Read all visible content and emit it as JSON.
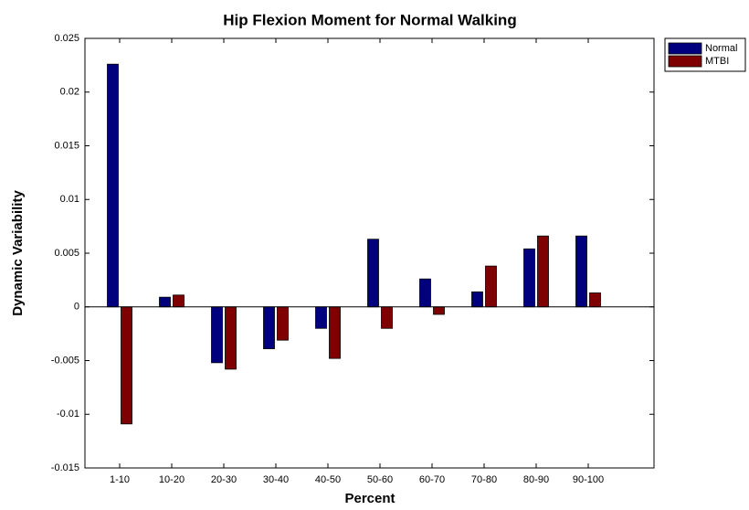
{
  "chart_data": {
    "type": "bar",
    "title": "Hip Flexion Moment for Normal Walking",
    "xlabel": "Percent",
    "ylabel": "Dynamic Variability",
    "categories": [
      "1-10",
      "10-20",
      "20-30",
      "30-40",
      "40-50",
      "50-60",
      "60-70",
      "70-80",
      "80-90",
      "90-100"
    ],
    "series": [
      {
        "name": "Normal",
        "color": "#00007f",
        "values": [
          0.0226,
          0.0009,
          -0.0052,
          -0.0039,
          -0.002,
          0.0063,
          0.0026,
          0.0014,
          0.0054,
          0.0066
        ]
      },
      {
        "name": "MTBI",
        "color": "#7f0000",
        "values": [
          -0.0109,
          0.0011,
          -0.0058,
          -0.0031,
          -0.0048,
          -0.002,
          -0.0007,
          0.0038,
          0.0066,
          0.0013
        ]
      }
    ],
    "ylim": [
      -0.015,
      0.025
    ],
    "yticks": [
      -0.015,
      -0.01,
      -0.005,
      0,
      0.005,
      0.01,
      0.015,
      0.02,
      0.025
    ],
    "grid": false,
    "legend": "outside-top-right"
  }
}
